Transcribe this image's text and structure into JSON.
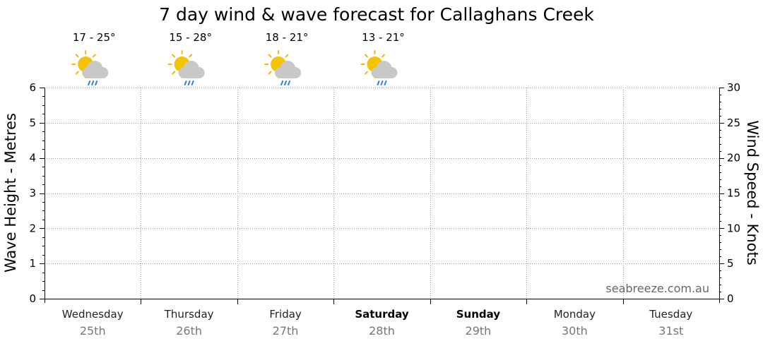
{
  "title": "7 day wind & wave forecast for Callaghans Creek",
  "watermark": "seabreeze.com.au",
  "chart_data": {
    "type": "line",
    "title": "7 day wind & wave forecast for Callaghans Creek",
    "ylabel_left": "Wave Height - Metres",
    "ylabel_right": "Wind Speed - Knots",
    "ylim_left": [
      0,
      6
    ],
    "ylim_right": [
      0,
      30
    ],
    "yticks_left": [
      "0",
      "1",
      "2",
      "3",
      "4",
      "5",
      "6"
    ],
    "yticks_right": [
      "0",
      "5",
      "10",
      "15",
      "20",
      "25",
      "30"
    ],
    "grid": true,
    "days": [
      {
        "day": "Wednesday",
        "date": "25th",
        "weekend": false,
        "temp": "17 - 25°",
        "icon": "sun-cloud-rain-icon"
      },
      {
        "day": "Thursday",
        "date": "26th",
        "weekend": false,
        "temp": "15 - 28°",
        "icon": "sun-cloud-rain-icon"
      },
      {
        "day": "Friday",
        "date": "27th",
        "weekend": false,
        "temp": "18 - 21°",
        "icon": "sun-cloud-rain-icon"
      },
      {
        "day": "Saturday",
        "date": "28th",
        "weekend": true,
        "temp": "13 - 21°",
        "icon": "sun-cloud-rain-icon"
      },
      {
        "day": "Sunday",
        "date": "29th",
        "weekend": true,
        "temp": "",
        "icon": ""
      },
      {
        "day": "Monday",
        "date": "30th",
        "weekend": false,
        "temp": "",
        "icon": ""
      },
      {
        "day": "Tuesday",
        "date": "31st",
        "weekend": false,
        "temp": "",
        "icon": ""
      }
    ],
    "series": []
  },
  "colors": {
    "sun": "#f5c400",
    "sun_rays": "#f5b800",
    "cloud": "#c8c8c8",
    "rain": "#2f7de1"
  }
}
